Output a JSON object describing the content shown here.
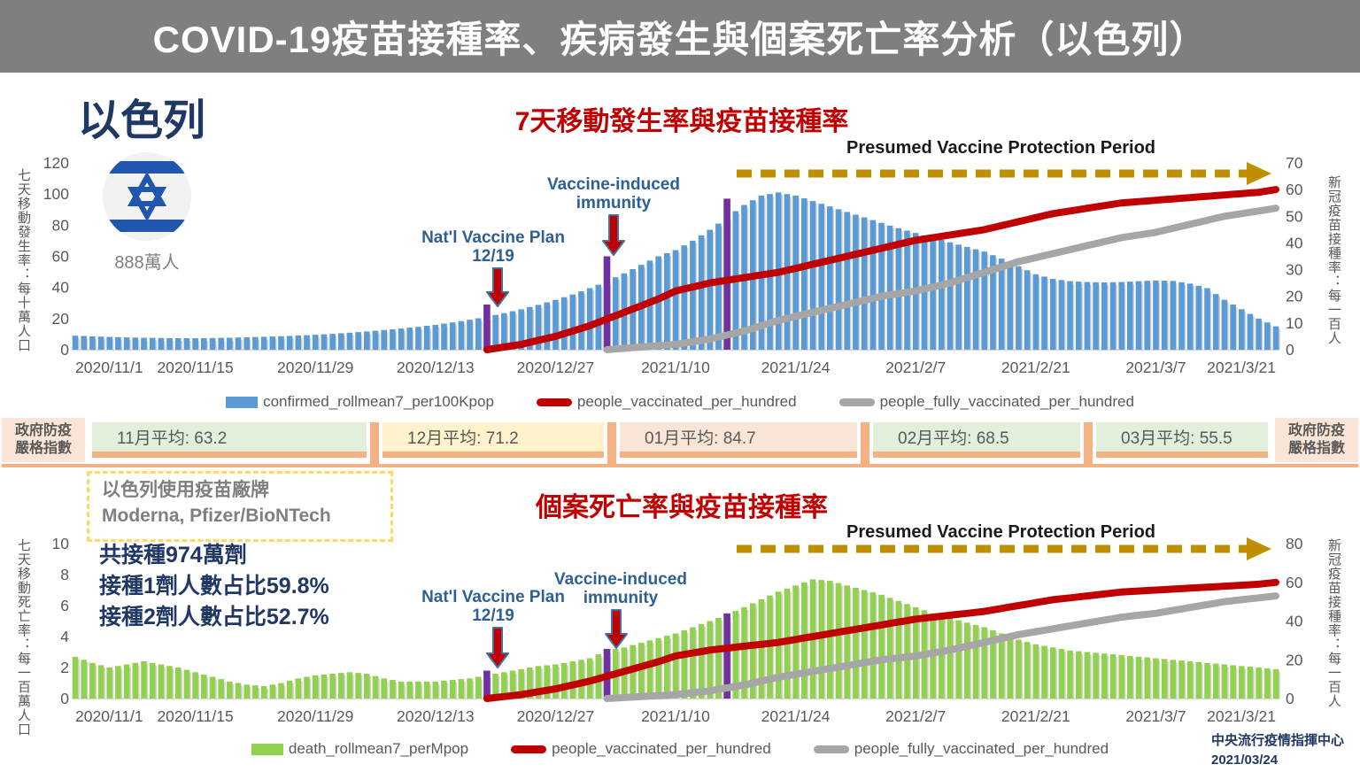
{
  "header": {
    "title": "COVID-19疫苗接種率、疾病發生與個案死亡率分析（以色列）"
  },
  "country": {
    "name": "以色列",
    "population": "888萬人"
  },
  "vaccine_info": {
    "line1": "以色列使用疫苗廠牌",
    "line2": "Moderna, Pfizer/BioNTech"
  },
  "dose_stats": {
    "line1": "共接種974萬劑",
    "line2": "接種1劑人數占比59.8%",
    "line3": "接種2劑人數占比52.7%"
  },
  "stringency": {
    "side_label_line1": "政府防疫",
    "side_label_line2": "嚴格指數",
    "accent": "#f4b183",
    "segments": [
      {
        "label": "11月平均: 63.2",
        "bg": "#e2efda"
      },
      {
        "label": "12月平均: 71.2",
        "bg": "#fff2cc"
      },
      {
        "label": "01月平均: 84.7",
        "bg": "#fbe5d6"
      },
      {
        "label": "02月平均: 68.5",
        "bg": "#e2efda"
      },
      {
        "label": "03月平均: 55.5",
        "bg": "#e2efda"
      }
    ]
  },
  "footer": {
    "line1": "中央流行疫情指揮中心",
    "line2": "2021/03/24"
  },
  "chart_data": [
    {
      "type": "bar",
      "title": "7天移動發生率與疫苗接種率",
      "left_axis": {
        "title": "七天移動發生率：每十萬人口",
        "max": 120,
        "ticks": [
          120,
          100,
          80,
          60,
          40,
          20,
          0
        ]
      },
      "right_axis": {
        "title": "新冠疫苗接種率：每一百人",
        "max": 70,
        "ticks": [
          70,
          60,
          50,
          40,
          30,
          20,
          10,
          0
        ]
      },
      "x_tick_days": [
        0,
        14,
        28,
        42,
        56,
        70,
        84,
        98,
        112,
        126,
        140
      ],
      "x_tick_labels": [
        "2020/11/1",
        "2020/11/15",
        "2020/11/29",
        "2020/12/13",
        "2020/12/27",
        "2021/1/10",
        "2021/1/24",
        "2021/2/7",
        "2021/2/21",
        "2021/3/7",
        "2021/3/21"
      ],
      "annotations": {
        "presumed": "Presumed Vaccine Protection Period",
        "immunity_line1": "Vaccine-induced",
        "immunity_line2": "immunity",
        "plan_line1": "Nat'l Vaccine Plan",
        "plan_line2": "12/19"
      },
      "series": [
        {
          "name": "confirmed_rollmean7_per100Kpop",
          "type": "bar",
          "axis": "left",
          "color": "#5b9bd5",
          "step_days": 2,
          "values": [
            9,
            8.6,
            8.2,
            7.9,
            7.7,
            7.5,
            7.4,
            7.4,
            7.5,
            7.7,
            8,
            8.3,
            8.7,
            9.1,
            9.6,
            10.2,
            10.9,
            11.7,
            12.6,
            13.6,
            14.7,
            16,
            17.5,
            19.2,
            21.2,
            23.5,
            26,
            28.8,
            32,
            35.5,
            39.5,
            44,
            49,
            54.5,
            60,
            64,
            70,
            77,
            85,
            93,
            99,
            101,
            99,
            95.5,
            92,
            88.5,
            85,
            81.5,
            78,
            75,
            72,
            69,
            66,
            63,
            58.5,
            53.5,
            48.5,
            45.5,
            44,
            43.5,
            43.2,
            43.5,
            44,
            44.5,
            44.2,
            42.5,
            39.5,
            32,
            26,
            20,
            15
          ]
        },
        {
          "name": "people_vaccinated_per_hundred",
          "type": "line",
          "axis": "right",
          "color": "#c00000",
          "keypoints": [
            [
              48,
              0
            ],
            [
              52,
              2
            ],
            [
              56,
              5
            ],
            [
              60,
              9
            ],
            [
              64,
              14
            ],
            [
              68,
              19
            ],
            [
              70,
              22
            ],
            [
              74,
              25
            ],
            [
              78,
              27
            ],
            [
              82,
              29
            ],
            [
              86,
              32
            ],
            [
              90,
              35
            ],
            [
              94,
              38
            ],
            [
              98,
              41
            ],
            [
              102,
              43
            ],
            [
              106,
              45
            ],
            [
              110,
              48
            ],
            [
              114,
              51
            ],
            [
              118,
              53
            ],
            [
              122,
              55
            ],
            [
              126,
              56
            ],
            [
              130,
              57
            ],
            [
              134,
              58
            ],
            [
              138,
              59
            ],
            [
              140,
              60
            ]
          ]
        },
        {
          "name": "people_fully_vaccinated_per_hundred",
          "type": "line",
          "axis": "right",
          "color": "#a6a6a6",
          "keypoints": [
            [
              62,
              0
            ],
            [
              66,
              1
            ],
            [
              70,
              2
            ],
            [
              74,
              4
            ],
            [
              78,
              7
            ],
            [
              82,
              11
            ],
            [
              86,
              14
            ],
            [
              90,
              17
            ],
            [
              94,
              20
            ],
            [
              98,
              22
            ],
            [
              102,
              25
            ],
            [
              106,
              29
            ],
            [
              110,
              33
            ],
            [
              114,
              36
            ],
            [
              118,
              39
            ],
            [
              122,
              42
            ],
            [
              126,
              44
            ],
            [
              130,
              47
            ],
            [
              134,
              50
            ],
            [
              138,
              52
            ],
            [
              140,
              53
            ]
          ]
        },
        {
          "name": "event_markers",
          "type": "event-bar",
          "axis": "left",
          "color": "#7030a0",
          "points": [
            [
              48,
              29
            ],
            [
              62,
              60
            ],
            [
              76,
              97
            ]
          ]
        }
      ],
      "legend": [
        "confirmed_rollmean7_per100Kpop",
        "people_vaccinated_per_hundred",
        "people_fully_vaccinated_per_hundred"
      ]
    },
    {
      "type": "bar",
      "title": "個案死亡率與疫苗接種率",
      "left_axis": {
        "title": "七天移動死亡率：每一百萬人口",
        "max": 10,
        "ticks": [
          10,
          8,
          6,
          4,
          2,
          0
        ]
      },
      "right_axis": {
        "title": "新冠疫苗接種率：每一百人",
        "max": 80,
        "ticks": [
          80,
          60,
          40,
          20,
          0
        ]
      },
      "x_tick_days": [
        0,
        14,
        28,
        42,
        56,
        70,
        84,
        98,
        112,
        126,
        140
      ],
      "x_tick_labels": [
        "2020/11/1",
        "2020/11/15",
        "2020/11/29",
        "2020/12/13",
        "2020/12/27",
        "2021/1/10",
        "2021/1/24",
        "2021/2/7",
        "2021/2/21",
        "2021/3/7",
        "2021/3/21"
      ],
      "annotations": {
        "presumed": "Presumed Vaccine Protection Period",
        "immunity_line1": "Vaccine-induced",
        "immunity_line2": "immunity",
        "plan_line1": "Nat'l Vaccine Plan",
        "plan_line2": "12/19"
      },
      "series": [
        {
          "name": "death_rollmean7_perMpop",
          "type": "bar",
          "axis": "left",
          "color": "#92d050",
          "step_days": 2,
          "values": [
            2.7,
            2.3,
            2,
            2.2,
            2.4,
            2.2,
            2,
            1.7,
            1.4,
            1.1,
            0.9,
            0.8,
            1,
            1.3,
            1.5,
            1.6,
            1.7,
            1.6,
            1.3,
            1.1,
            1.1,
            1.1,
            1.2,
            1.3,
            1.5,
            1.7,
            1.9,
            2.1,
            2.2,
            2.4,
            2.6,
            3.1,
            3.3,
            3.6,
            3.9,
            4.2,
            4.6,
            5,
            5.4,
            5.9,
            6.4,
            6.9,
            7.3,
            7.7,
            7.6,
            7.3,
            7,
            6.7,
            6.3,
            5.9,
            5.5,
            5.2,
            4.9,
            4.6,
            4.2,
            3.8,
            3.5,
            3.3,
            3.1,
            3,
            2.9,
            2.8,
            2.7,
            2.6,
            2.5,
            2.4,
            2.3,
            2.2,
            2.1,
            2,
            1.9
          ]
        },
        {
          "name": "people_vaccinated_per_hundred",
          "type": "line",
          "axis": "right",
          "color": "#c00000",
          "keypoints": [
            [
              48,
              0
            ],
            [
              52,
              2
            ],
            [
              56,
              5
            ],
            [
              60,
              9
            ],
            [
              64,
              14
            ],
            [
              68,
              19
            ],
            [
              70,
              22
            ],
            [
              74,
              25
            ],
            [
              78,
              27
            ],
            [
              82,
              29
            ],
            [
              86,
              32
            ],
            [
              90,
              35
            ],
            [
              94,
              38
            ],
            [
              98,
              41
            ],
            [
              102,
              43
            ],
            [
              106,
              45
            ],
            [
              110,
              48
            ],
            [
              114,
              51
            ],
            [
              118,
              53
            ],
            [
              122,
              55
            ],
            [
              126,
              56
            ],
            [
              130,
              57
            ],
            [
              134,
              58
            ],
            [
              138,
              59
            ],
            [
              140,
              60
            ]
          ]
        },
        {
          "name": "people_fully_vaccinated_per_hundred",
          "type": "line",
          "axis": "right",
          "color": "#a6a6a6",
          "keypoints": [
            [
              62,
              0
            ],
            [
              66,
              1
            ],
            [
              70,
              2
            ],
            [
              74,
              4
            ],
            [
              78,
              7
            ],
            [
              82,
              11
            ],
            [
              86,
              14
            ],
            [
              90,
              17
            ],
            [
              94,
              20
            ],
            [
              98,
              22
            ],
            [
              102,
              25
            ],
            [
              106,
              29
            ],
            [
              110,
              33
            ],
            [
              114,
              36
            ],
            [
              118,
              39
            ],
            [
              122,
              42
            ],
            [
              126,
              44
            ],
            [
              130,
              47
            ],
            [
              134,
              50
            ],
            [
              138,
              52
            ],
            [
              140,
              53
            ]
          ]
        },
        {
          "name": "event_markers",
          "type": "event-bar",
          "axis": "left",
          "color": "#7030a0",
          "points": [
            [
              48,
              1.8
            ],
            [
              62,
              3.2
            ],
            [
              76,
              5.5
            ]
          ]
        }
      ],
      "legend": [
        "death_rollmean7_perMpop",
        "people_vaccinated_per_hundred",
        "people_fully_vaccinated_per_hundred"
      ]
    }
  ]
}
